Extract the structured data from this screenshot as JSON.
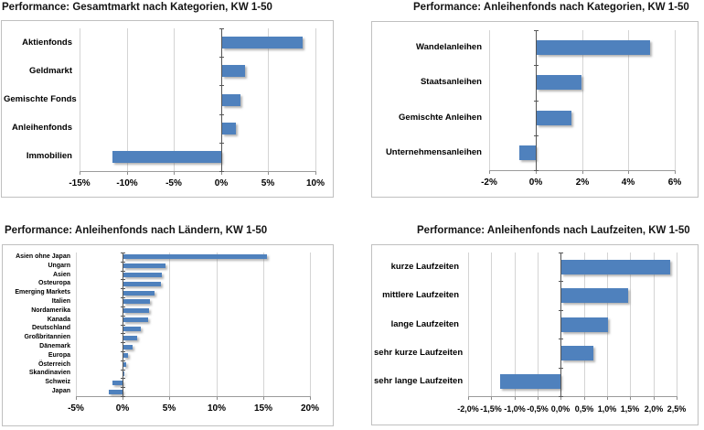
{
  "accent_color": "#4f81bd",
  "chart_data": [
    {
      "type": "bar",
      "orientation": "horizontal",
      "title": "Performance: Gesamtmarkt nach Kategorien, KW 1-50",
      "categories": [
        "Aktienfonds",
        "Geldmarkt",
        "Gemischte Fonds",
        "Anleihenfonds",
        "Immobilien"
      ],
      "values": [
        8.5,
        2.4,
        1.9,
        1.5,
        -11.5
      ],
      "unit": "%",
      "xlim": [
        -15,
        10
      ],
      "xticks": [
        -15,
        -10,
        -5,
        0,
        5,
        10
      ],
      "xtick_labels": [
        "-15%",
        "-10%",
        "-5%",
        "0%",
        "5%",
        "10%"
      ],
      "grid": true,
      "legend": "none",
      "bar_color": "#4f81bd"
    },
    {
      "type": "bar",
      "orientation": "horizontal",
      "title": "Performance: Anleihenfonds nach Kategorien, KW 1-50",
      "categories": [
        "Wandelanleihen",
        "Staatsanleihen",
        "Gemischte Anleihen",
        "Unternehmensanleihen"
      ],
      "values": [
        4.9,
        1.95,
        1.5,
        -0.7
      ],
      "unit": "%",
      "xlim": [
        -2,
        6
      ],
      "xticks": [
        -2,
        0,
        2,
        4,
        6
      ],
      "xtick_labels": [
        "-2%",
        "0%",
        "2%",
        "4%",
        "6%"
      ],
      "grid": true,
      "legend": "none",
      "bar_color": "#4f81bd"
    },
    {
      "type": "bar",
      "orientation": "horizontal",
      "title": "Performance: Anleihenfonds nach Ländern, KW 1-50",
      "categories": [
        "Asien ohne Japan",
        "Ungarn",
        "Asien",
        "Osteuropa",
        "Emerging Markets",
        "Italien",
        "Nordamerika",
        "Kanada",
        "Deutschland",
        "Großbritannien",
        "Dänemark",
        "Europa",
        "Österreich",
        "Skandinavien",
        "Schweiz",
        "Japan"
      ],
      "values": [
        15.3,
        4.5,
        4.1,
        4.0,
        3.3,
        2.8,
        2.7,
        2.6,
        1.9,
        1.5,
        1.0,
        0.45,
        0.3,
        0.05,
        -1.1,
        -1.5
      ],
      "unit": "%",
      "xlim": [
        -5,
        20
      ],
      "xticks": [
        -5,
        0,
        5,
        10,
        15,
        20
      ],
      "xtick_labels": [
        "-5%",
        "0%",
        "5%",
        "10%",
        "15%",
        "20%"
      ],
      "grid": true,
      "legend": "none",
      "bar_color": "#4f81bd"
    },
    {
      "type": "bar",
      "orientation": "horizontal",
      "title": "Performance: Anleihenfonds nach Laufzeiten, KW 1-50",
      "categories": [
        "kurze Laufzeiten",
        "mittlere Laufzeiten",
        "lange Laufzeiten",
        "sehr kurze Laufzeiten",
        "sehr lange Laufzeiten"
      ],
      "values": [
        2.35,
        1.45,
        1.0,
        0.7,
        -1.3
      ],
      "unit": "%",
      "xlim": [
        -2.0,
        2.5
      ],
      "xticks": [
        -2.0,
        -1.5,
        -1.0,
        -0.5,
        0.0,
        0.5,
        1.0,
        1.5,
        2.0,
        2.5
      ],
      "xtick_labels": [
        "-2,0%",
        "-1,5%",
        "-1,0%",
        "-0,5%",
        "0,0%",
        "0,5%",
        "1,0%",
        "1,5%",
        "2,0%",
        "2,5%"
      ],
      "grid": true,
      "legend": "none",
      "bar_color": "#4f81bd"
    }
  ]
}
